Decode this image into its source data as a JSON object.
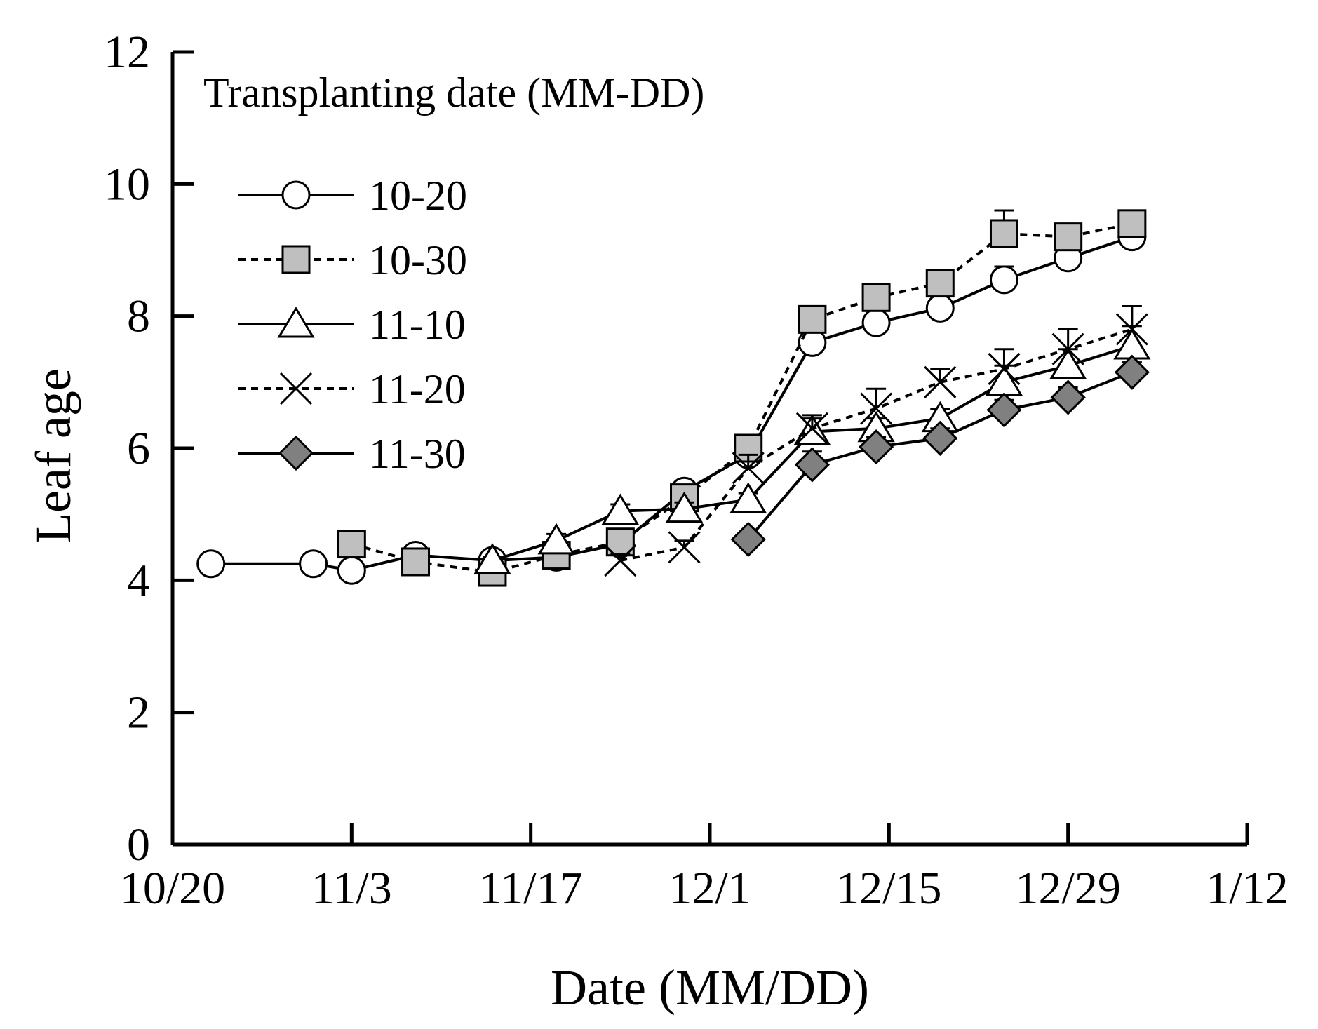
{
  "chart_data": {
    "type": "line",
    "title": "",
    "xlabel": "Date (MM/DD)",
    "ylabel": "Leaf age",
    "xlim": [
      0,
      84
    ],
    "ylim": [
      0,
      12
    ],
    "x_ticks": [
      0,
      14,
      28,
      42,
      56,
      70,
      84
    ],
    "x_tick_labels": [
      "10/20",
      "11/3",
      "11/17",
      "12/1",
      "12/15",
      "12/29",
      "1/12"
    ],
    "y_ticks": [
      0,
      2,
      4,
      6,
      8,
      10,
      12
    ],
    "y_tick_labels": [
      "0",
      "2",
      "4",
      "6",
      "8",
      "10",
      "12"
    ],
    "x_unit_note": "x values are days after 10/20",
    "grid": false,
    "legend": {
      "title": "Transplanting date (MM-DD)",
      "position": "top-left"
    },
    "series": [
      {
        "name": "10-20",
        "line": "solid",
        "marker": "circle",
        "fill": "#ffffff",
        "x": [
          3,
          11,
          14,
          19,
          25,
          30,
          35,
          40,
          45,
          50,
          55,
          60,
          65,
          70,
          75
        ],
        "y": [
          4.25,
          4.25,
          4.15,
          4.38,
          4.3,
          4.35,
          4.55,
          5.35,
          5.9,
          7.6,
          7.9,
          8.12,
          8.55,
          8.88,
          9.2
        ],
        "err": [
          0.05,
          0.05,
          0.08,
          0.05,
          0.05,
          0.05,
          0.08,
          0.1,
          0.15,
          0.15,
          0.1,
          0.15,
          0.2,
          0.2,
          0.15
        ]
      },
      {
        "name": "10-30",
        "line": "dashed",
        "marker": "square",
        "fill": "#bfbfbf",
        "x": [
          14,
          19,
          25,
          30,
          35,
          40,
          45,
          50,
          55,
          60,
          65,
          70,
          75
        ],
        "y": [
          4.55,
          4.28,
          4.12,
          4.38,
          4.58,
          5.25,
          6.0,
          7.95,
          8.28,
          8.5,
          9.25,
          9.2,
          9.4
        ],
        "err": [
          0.1,
          0.05,
          0.05,
          0.05,
          0.08,
          0.1,
          0.1,
          0.15,
          0.15,
          0.2,
          0.35,
          0.2,
          0.15
        ]
      },
      {
        "name": "11-10",
        "line": "solid",
        "marker": "triangle",
        "fill": "#ffffff",
        "x": [
          25,
          30,
          35,
          40,
          45,
          50,
          55,
          60,
          65,
          70,
          75
        ],
        "y": [
          4.3,
          4.6,
          5.05,
          5.08,
          5.22,
          6.25,
          6.3,
          6.45,
          7.0,
          7.25,
          7.55
        ],
        "err": [
          0.05,
          0.1,
          0.1,
          0.1,
          0.1,
          0.2,
          0.15,
          0.15,
          0.25,
          0.25,
          0.3
        ]
      },
      {
        "name": "11-20",
        "line": "dashed",
        "marker": "x",
        "fill": "none",
        "x": [
          35,
          40,
          45,
          50,
          55,
          60,
          65,
          70,
          75
        ],
        "y": [
          4.3,
          4.5,
          5.7,
          6.3,
          6.6,
          7.0,
          7.2,
          7.5,
          7.8
        ],
        "err": [
          0.1,
          0.1,
          0.2,
          0.2,
          0.3,
          0.2,
          0.3,
          0.3,
          0.35
        ]
      },
      {
        "name": "11-30",
        "line": "solid",
        "marker": "diamond",
        "fill": "#808080",
        "x": [
          45,
          50,
          55,
          60,
          65,
          70,
          75
        ],
        "y": [
          4.62,
          5.75,
          6.02,
          6.15,
          6.58,
          6.77,
          7.15
        ],
        "err": [
          0.05,
          0.2,
          0.15,
          0.15,
          0.15,
          0.15,
          0.15
        ]
      }
    ]
  }
}
